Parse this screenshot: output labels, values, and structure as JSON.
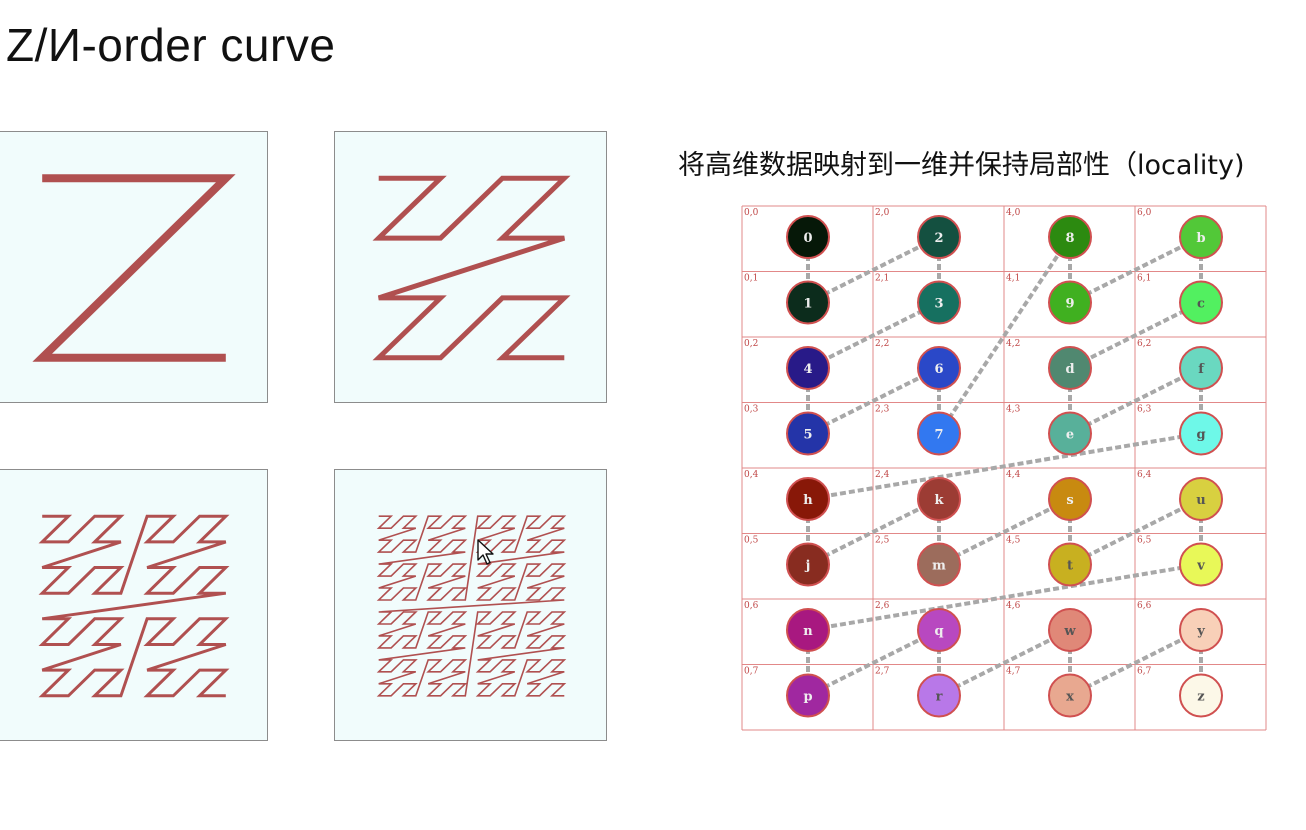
{
  "slide": {
    "title": "Z/И-order curve",
    "subtitle": "将高维数据映射到一维并保持局部性（locality)"
  },
  "curve": {
    "stroke_color": "#b05050",
    "orders": [
      1,
      2,
      3,
      4
    ]
  },
  "grid": {
    "cols": 4,
    "rows": 8,
    "line_color": "#e28888",
    "cell_labels": [
      "0,0",
      "2,0",
      "4,0",
      "6,0",
      "0,1",
      "2,1",
      "4,1",
      "6,1",
      "0,2",
      "2,2",
      "4,2",
      "6,2",
      "0,3",
      "2,3",
      "4,3",
      "6,3",
      "0,4",
      "2,4",
      "4,4",
      "6,4",
      "0,5",
      "2,5",
      "4,5",
      "6,5",
      "0,6",
      "2,6",
      "4,6",
      "6,6",
      "0,7",
      "2,7",
      "4,7",
      "6,7"
    ],
    "nodes": [
      {
        "label": "0",
        "col": 0,
        "row": 0,
        "color": "#061808"
      },
      {
        "label": "1",
        "col": 0,
        "row": 1,
        "color": "#0c2c1c"
      },
      {
        "label": "2",
        "col": 1,
        "row": 0,
        "color": "#145040"
      },
      {
        "label": "3",
        "col": 1,
        "row": 1,
        "color": "#167060"
      },
      {
        "label": "4",
        "col": 0,
        "row": 2,
        "color": "#281a88"
      },
      {
        "label": "5",
        "col": 0,
        "row": 3,
        "color": "#2434a8"
      },
      {
        "label": "6",
        "col": 1,
        "row": 2,
        "color": "#2a48c8"
      },
      {
        "label": "7",
        "col": 1,
        "row": 3,
        "color": "#3278f0"
      },
      {
        "label": "8",
        "col": 2,
        "row": 0,
        "color": "#2c8a10"
      },
      {
        "label": "9",
        "col": 2,
        "row": 1,
        "color": "#40b020"
      },
      {
        "label": "b",
        "col": 3,
        "row": 0,
        "color": "#52c838"
      },
      {
        "label": "c",
        "col": 3,
        "row": 1,
        "color": "#52f060"
      },
      {
        "label": "d",
        "col": 2,
        "row": 2,
        "color": "#508870"
      },
      {
        "label": "e",
        "col": 2,
        "row": 3,
        "color": "#58b09a"
      },
      {
        "label": "f",
        "col": 3,
        "row": 2,
        "color": "#6ad8c0"
      },
      {
        "label": "g",
        "col": 3,
        "row": 3,
        "color": "#6ef8e8"
      },
      {
        "label": "h",
        "col": 0,
        "row": 4,
        "color": "#881808"
      },
      {
        "label": "j",
        "col": 0,
        "row": 5,
        "color": "#882c20"
      },
      {
        "label": "k",
        "col": 1,
        "row": 4,
        "color": "#9c3c34"
      },
      {
        "label": "m",
        "col": 1,
        "row": 5,
        "color": "#9c6c5c"
      },
      {
        "label": "s",
        "col": 2,
        "row": 4,
        "color": "#c88a10"
      },
      {
        "label": "t",
        "col": 2,
        "row": 5,
        "color": "#c8b020"
      },
      {
        "label": "u",
        "col": 3,
        "row": 4,
        "color": "#d8d040"
      },
      {
        "label": "v",
        "col": 3,
        "row": 5,
        "color": "#e8f858"
      },
      {
        "label": "n",
        "col": 0,
        "row": 6,
        "color": "#a81880"
      },
      {
        "label": "p",
        "col": 0,
        "row": 7,
        "color": "#a028a0"
      },
      {
        "label": "q",
        "col": 1,
        "row": 6,
        "color": "#b848c0"
      },
      {
        "label": "r",
        "col": 1,
        "row": 7,
        "color": "#b878e8"
      },
      {
        "label": "w",
        "col": 2,
        "row": 6,
        "color": "#e08878"
      },
      {
        "label": "x",
        "col": 2,
        "row": 7,
        "color": "#e8a890"
      },
      {
        "label": "y",
        "col": 3,
        "row": 6,
        "color": "#f8d0b8"
      },
      {
        "label": "z",
        "col": 3,
        "row": 7,
        "color": "#fcf8e8"
      }
    ]
  }
}
